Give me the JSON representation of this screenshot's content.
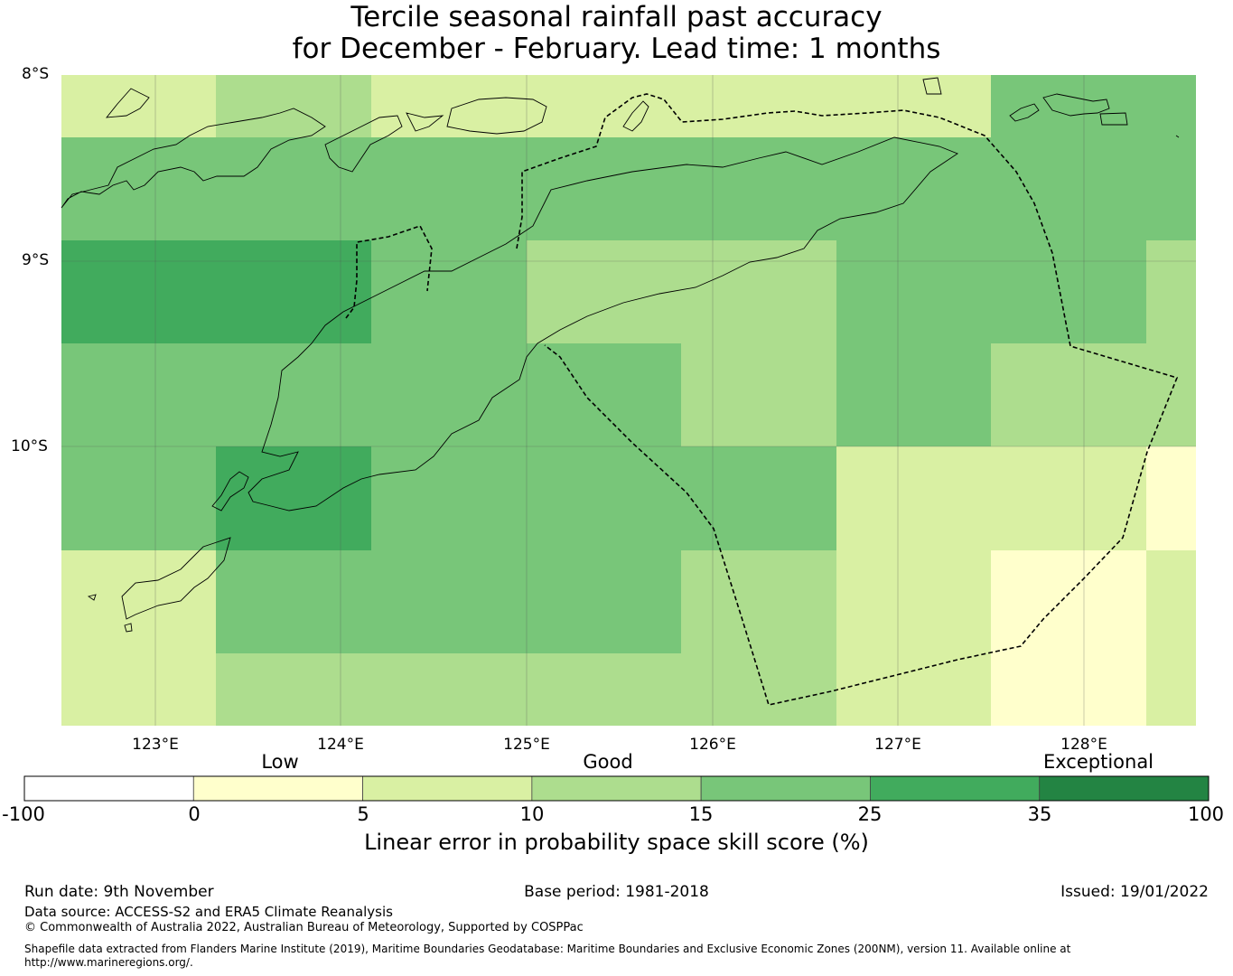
{
  "title": {
    "line1": "Tercile seasonal rainfall past accuracy",
    "line2": "for December - February. Lead time: 1 months"
  },
  "map": {
    "lat_ticks": [
      "8°S",
      "9°S",
      "10°S"
    ],
    "lon_ticks": [
      "123°E",
      "124°E",
      "125°E",
      "126°E",
      "127°E",
      "128°E"
    ],
    "grid_lon_range": [
      122.5,
      128.6
    ],
    "grid_lat_range": [
      -8.0,
      -11.5
    ],
    "cell_size_deg": 0.833,
    "cells": [
      {
        "row": 0,
        "col": 0,
        "category": 2
      },
      {
        "row": 0,
        "col": 1,
        "category": 3
      },
      {
        "row": 0,
        "col": 2,
        "category": 2
      },
      {
        "row": 0,
        "col": 3,
        "category": 2
      },
      {
        "row": 0,
        "col": 4,
        "category": 2
      },
      {
        "row": 0,
        "col": 5,
        "category": 2
      },
      {
        "row": 0,
        "col": 6,
        "category": 4
      },
      {
        "row": 0,
        "col": 7,
        "category": 4
      },
      {
        "row": 1,
        "col": 0,
        "category": 4
      },
      {
        "row": 1,
        "col": 1,
        "category": 4
      },
      {
        "row": 1,
        "col": 2,
        "category": 4
      },
      {
        "row": 1,
        "col": 3,
        "category": 4
      },
      {
        "row": 1,
        "col": 4,
        "category": 4
      },
      {
        "row": 1,
        "col": 5,
        "category": 4
      },
      {
        "row": 1,
        "col": 6,
        "category": 4
      },
      {
        "row": 1,
        "col": 7,
        "category": 4
      },
      {
        "row": 2,
        "col": 0,
        "category": 5
      },
      {
        "row": 2,
        "col": 1,
        "category": 5
      },
      {
        "row": 2,
        "col": 2,
        "category": 4
      },
      {
        "row": 2,
        "col": 3,
        "category": 3
      },
      {
        "row": 2,
        "col": 4,
        "category": 3
      },
      {
        "row": 2,
        "col": 5,
        "category": 4
      },
      {
        "row": 2,
        "col": 6,
        "category": 4
      },
      {
        "row": 2,
        "col": 7,
        "category": 3
      },
      {
        "row": 3,
        "col": 0,
        "category": 4
      },
      {
        "row": 3,
        "col": 1,
        "category": 4
      },
      {
        "row": 3,
        "col": 2,
        "category": 4
      },
      {
        "row": 3,
        "col": 3,
        "category": 4
      },
      {
        "row": 3,
        "col": 4,
        "category": 3
      },
      {
        "row": 3,
        "col": 5,
        "category": 4
      },
      {
        "row": 3,
        "col": 6,
        "category": 3
      },
      {
        "row": 3,
        "col": 7,
        "category": 3
      },
      {
        "row": 4,
        "col": 0,
        "category": 4
      },
      {
        "row": 4,
        "col": 1,
        "category": 5
      },
      {
        "row": 4,
        "col": 2,
        "category": 4
      },
      {
        "row": 4,
        "col": 3,
        "category": 4
      },
      {
        "row": 4,
        "col": 4,
        "category": 4
      },
      {
        "row": 4,
        "col": 5,
        "category": 2
      },
      {
        "row": 4,
        "col": 6,
        "category": 2
      },
      {
        "row": 4,
        "col": 7,
        "category": 1
      },
      {
        "row": 5,
        "col": 0,
        "category": 2
      },
      {
        "row": 5,
        "col": 1,
        "category": 4
      },
      {
        "row": 5,
        "col": 2,
        "category": 4
      },
      {
        "row": 5,
        "col": 3,
        "category": 4
      },
      {
        "row": 5,
        "col": 4,
        "category": 3
      },
      {
        "row": 5,
        "col": 5,
        "category": 2
      },
      {
        "row": 5,
        "col": 6,
        "category": 1
      },
      {
        "row": 5,
        "col": 7,
        "category": 2
      },
      {
        "row": 6,
        "col": 0,
        "category": 2
      },
      {
        "row": 6,
        "col": 1,
        "category": 3
      },
      {
        "row": 6,
        "col": 2,
        "category": 3
      },
      {
        "row": 6,
        "col": 3,
        "category": 3
      },
      {
        "row": 6,
        "col": 4,
        "category": 3
      },
      {
        "row": 6,
        "col": 5,
        "category": 2
      },
      {
        "row": 6,
        "col": 6,
        "category": 1
      },
      {
        "row": 6,
        "col": 7,
        "category": 2
      }
    ]
  },
  "colorbar": {
    "section_labels": [
      "Low",
      "Good",
      "Exceptional"
    ],
    "tick_labels": [
      "-100",
      "0",
      "5",
      "10",
      "15",
      "25",
      "35",
      "100"
    ],
    "colors": [
      "#ffffff",
      "#ffffcc",
      "#d9f0a3",
      "#addd8e",
      "#78c679",
      "#41ab5d",
      "#238443"
    ],
    "label": "Linear error in probability space skill score (%)"
  },
  "footer": {
    "run_date": "Run date: 9th November",
    "base_period": "Base period: 1981-2018",
    "issued": "Issued: 19/01/2022",
    "data_source": "Data source: ACCESS-S2 and ERA5 Climate Reanalysis",
    "copyright": "© Commonwealth of Australia 2022, Australian Bureau of Meteorology, Supported by COSPPac",
    "shapefile_line1": "Shapefile data extracted from Flanders Marine Institute (2019), Maritime Boundaries Geodatabase: Maritime Boundaries and Exclusive Economic Zones (200NM), version 11. Available online at",
    "shapefile_line2": "http://www.marineregions.org/."
  }
}
